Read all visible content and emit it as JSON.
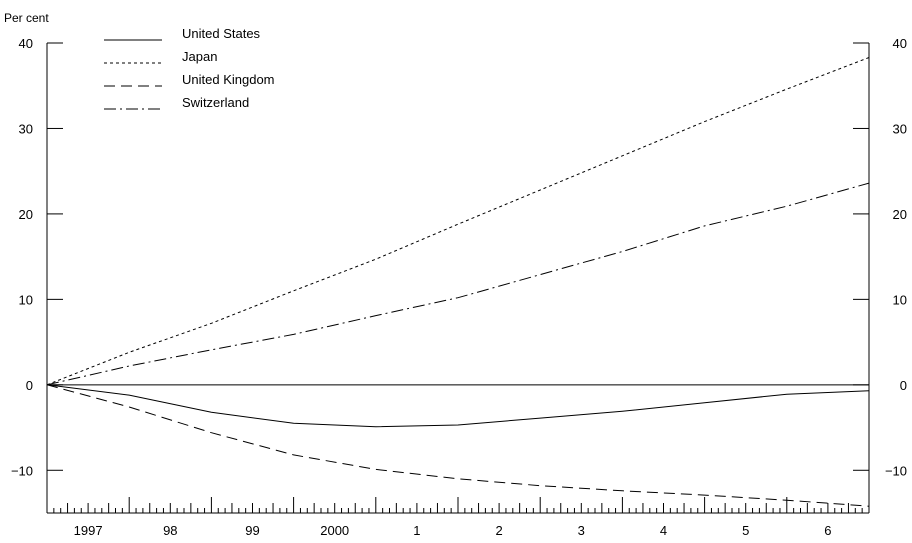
{
  "chart_data": {
    "type": "line",
    "title": "",
    "ylabel": "Per cent",
    "xlabel": "",
    "ylim": [
      -15,
      40
    ],
    "y_ticks": [
      -10,
      0,
      10,
      20,
      30,
      40
    ],
    "y_tick_labels": [
      "−10",
      "0",
      "10",
      "20",
      "30",
      "40"
    ],
    "xlim": [
      1997.0,
      2007.0
    ],
    "x_tick_labels": [
      {
        "label": "1997",
        "at": 1997.5
      },
      {
        "label": "98",
        "at": 1998.5
      },
      {
        "label": "99",
        "at": 1999.5
      },
      {
        "label": "2000",
        "at": 2000.5
      },
      {
        "label": "1",
        "at": 2001.5
      },
      {
        "label": "2",
        "at": 2002.5
      },
      {
        "label": "3",
        "at": 2003.5
      },
      {
        "label": "4",
        "at": 2004.5
      },
      {
        "label": "5",
        "at": 2005.5
      },
      {
        "label": "6",
        "at": 2006.5
      }
    ],
    "minor_ticks_per_year": 12,
    "zero_line": true,
    "legend_position": "top-left",
    "series": [
      {
        "name": "United States",
        "style": "solid",
        "x": [
          1997.0,
          1998.0,
          1999.0,
          2000.0,
          2001.0,
          2002.0,
          2003.0,
          2004.0,
          2005.0,
          2006.0,
          2007.0
        ],
        "y": [
          0,
          -1.2,
          -3.2,
          -4.5,
          -4.9,
          -4.7,
          -3.9,
          -3.1,
          -2.1,
          -1.1,
          -0.7
        ]
      },
      {
        "name": "Japan",
        "style": "dotted",
        "x": [
          1997.0,
          1998.0,
          1999.0,
          2000.0,
          2001.0,
          2002.0,
          2003.0,
          2004.0,
          2005.0,
          2006.0,
          2007.0
        ],
        "y": [
          0,
          3.8,
          7.2,
          11.0,
          14.7,
          18.8,
          22.8,
          26.8,
          30.8,
          34.6,
          38.3
        ]
      },
      {
        "name": "United Kingdom",
        "style": "dashed",
        "x": [
          1997.0,
          1998.0,
          1999.0,
          2000.0,
          2001.0,
          2002.0,
          2003.0,
          2004.0,
          2005.0,
          2006.0,
          2007.0
        ],
        "y": [
          0,
          -2.6,
          -5.6,
          -8.2,
          -9.9,
          -11.0,
          -11.8,
          -12.4,
          -12.9,
          -13.5,
          -14.2
        ]
      },
      {
        "name": "Switzerland",
        "style": "dash-dot",
        "x": [
          1997.0,
          1998.0,
          1999.0,
          2000.0,
          2001.0,
          2002.0,
          2003.0,
          2004.0,
          2005.0,
          2006.0,
          2007.0
        ],
        "y": [
          0,
          2.2,
          4.1,
          5.9,
          8.1,
          10.2,
          12.9,
          15.6,
          18.6,
          20.9,
          23.6
        ]
      }
    ]
  }
}
